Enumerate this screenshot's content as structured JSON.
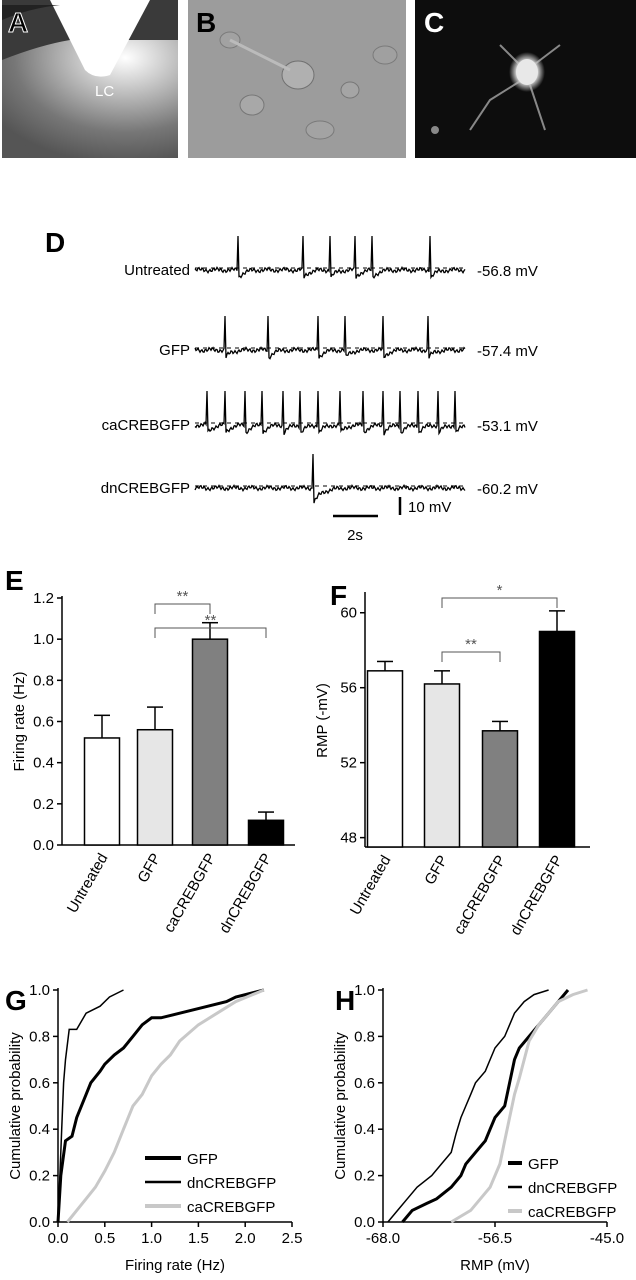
{
  "images": [
    {
      "label": "A",
      "annotation": "LC"
    },
    {
      "label": "B"
    },
    {
      "label": "C"
    }
  ],
  "traces": {
    "label": "D",
    "rows": [
      {
        "name": "Untreated",
        "potential": "-56.8 mV"
      },
      {
        "name": "GFP",
        "potential": "-57.4 mV"
      },
      {
        "name": "caCREBGFP",
        "potential": "-53.1 mV"
      },
      {
        "name": "dnCREBGFP",
        "potential": "-60.2 mV"
      }
    ],
    "scale_y": "10 mV",
    "scale_x": "2s"
  },
  "chart_data": [
    {
      "type": "bar",
      "panel": "E",
      "ylabel": "Firing rate (Hz)",
      "categories": [
        "Untreated",
        "GFP",
        "caCREBGFP",
        "dnCREBGFP"
      ],
      "values": [
        0.52,
        0.56,
        1.0,
        0.12
      ],
      "errors": [
        0.11,
        0.11,
        0.08,
        0.04
      ],
      "colors": [
        "#ffffff",
        "#e6e6e6",
        "#808080",
        "#000000"
      ],
      "ylim": [
        0,
        1.2
      ],
      "yticks": [
        {
          "value": 0,
          "label": "0.0"
        },
        0.2,
        0.4,
        0.6,
        0.8,
        {
          "value": 1,
          "label": "1.0"
        },
        1.2
      ],
      "annotations": [
        "**",
        "**"
      ]
    },
    {
      "type": "bar",
      "panel": "F",
      "ylabel": "RMP (-mV)",
      "categories": [
        "Untreated",
        "GFP",
        "caCREBGFP",
        "dnCREBGFP"
      ],
      "values": [
        56.9,
        56.2,
        53.7,
        59.0
      ],
      "errors": [
        0.5,
        0.7,
        0.5,
        1.1
      ],
      "colors": [
        "#ffffff",
        "#e6e6e6",
        "#808080",
        "#000000"
      ],
      "ylim": [
        47.5,
        61
      ],
      "yticks": [
        48,
        52,
        56,
        60
      ],
      "annotations": [
        "**",
        "*"
      ]
    },
    {
      "type": "line",
      "panel": "G",
      "xlabel": "Firing rate (Hz)",
      "ylabel": "Cumulative probability",
      "xlim": [
        0,
        2.5
      ],
      "xticks": [
        {
          "value": 0,
          "label": "0.0"
        },
        0.5,
        {
          "value": 1,
          "label": "1.0"
        },
        1.5,
        {
          "value": 2,
          "label": "2.0"
        },
        2.5
      ],
      "ylim": [
        0,
        1
      ],
      "yticks": [
        {
          "value": 0,
          "label": "0.0"
        },
        0.2,
        0.4,
        0.6,
        0.8,
        {
          "value": 1,
          "label": "1.0"
        }
      ],
      "legend": "lower right",
      "series": [
        {
          "name": "GFP",
          "color": "#000000",
          "linewidth": 3,
          "x": [
            0,
            0.03,
            0.08,
            0.15,
            0.2,
            0.3,
            0.35,
            0.45,
            0.5,
            0.6,
            0.7,
            0.8,
            0.9,
            1.0,
            1.1,
            1.3,
            1.5,
            1.8,
            1.9,
            2.2
          ],
          "values": [
            0,
            0.2,
            0.35,
            0.37,
            0.45,
            0.55,
            0.6,
            0.65,
            0.68,
            0.72,
            0.75,
            0.8,
            0.85,
            0.88,
            0.88,
            0.9,
            0.92,
            0.95,
            0.97,
            1.0
          ]
        },
        {
          "name": "dnCREBGFP",
          "color": "#000000",
          "linewidth": 1.5,
          "x": [
            0,
            0.02,
            0.04,
            0.06,
            0.08,
            0.12,
            0.2,
            0.3,
            0.45,
            0.55,
            0.7
          ],
          "values": [
            0,
            0.2,
            0.4,
            0.6,
            0.7,
            0.83,
            0.83,
            0.9,
            0.93,
            0.97,
            1.0
          ]
        },
        {
          "name": "caCREBGFP",
          "color": "#c8c8c8",
          "linewidth": 3,
          "x": [
            0.1,
            0.2,
            0.3,
            0.4,
            0.5,
            0.6,
            0.7,
            0.8,
            0.9,
            1.0,
            1.1,
            1.2,
            1.3,
            1.5,
            1.7,
            1.9,
            2.2
          ],
          "values": [
            0,
            0.05,
            0.1,
            0.15,
            0.22,
            0.3,
            0.4,
            0.5,
            0.55,
            0.63,
            0.68,
            0.72,
            0.78,
            0.85,
            0.9,
            0.95,
            1.0
          ]
        }
      ]
    },
    {
      "type": "line",
      "panel": "H",
      "xlabel": "RMP (mV)",
      "ylabel": "Cumulative probability",
      "xlim": [
        -68,
        -45
      ],
      "xticks": [
        {
          "value": -68,
          "label": "-68.0"
        },
        -56.5,
        {
          "value": -45,
          "label": "-45.0"
        }
      ],
      "ylim": [
        0,
        1
      ],
      "yticks": [
        {
          "value": 0,
          "label": "0.0"
        },
        0.2,
        0.4,
        0.6,
        0.8,
        {
          "value": 1,
          "label": "1.0"
        }
      ],
      "legend": "lower right",
      "series": [
        {
          "name": "GFP",
          "color": "#000000",
          "linewidth": 3,
          "x": [
            -66,
            -65,
            -63.5,
            -62.5,
            -61,
            -60,
            -59.5,
            -58.5,
            -57.5,
            -57,
            -56.5,
            -55.5,
            -55,
            -54.5,
            -54,
            -53,
            -52,
            -51,
            -50,
            -49
          ],
          "values": [
            0,
            0.05,
            0.08,
            0.1,
            0.15,
            0.2,
            0.25,
            0.3,
            0.35,
            0.4,
            0.45,
            0.5,
            0.6,
            0.7,
            0.75,
            0.8,
            0.85,
            0.9,
            0.95,
            1.0
          ]
        },
        {
          "name": "dnCREBGFP",
          "color": "#000000",
          "linewidth": 1.5,
          "x": [
            -67.5,
            -66.5,
            -65.5,
            -64.5,
            -63,
            -62,
            -61,
            -60.5,
            -60,
            -59.5,
            -59,
            -58.5,
            -57.5,
            -57,
            -56.5,
            -55.5,
            -55,
            -54.5,
            -53.5,
            -52.5,
            -51
          ],
          "values": [
            0,
            0.05,
            0.1,
            0.15,
            0.2,
            0.25,
            0.3,
            0.38,
            0.45,
            0.5,
            0.55,
            0.6,
            0.65,
            0.7,
            0.75,
            0.8,
            0.85,
            0.9,
            0.95,
            0.98,
            1.0
          ]
        },
        {
          "name": "caCREBGFP",
          "color": "#c8c8c8",
          "linewidth": 3,
          "x": [
            -61,
            -59,
            -58,
            -57,
            -56,
            -55.5,
            -55,
            -54.5,
            -54,
            -53.5,
            -53,
            -52,
            -51,
            -50,
            -48.5,
            -47
          ],
          "values": [
            0,
            0.05,
            0.1,
            0.15,
            0.25,
            0.35,
            0.45,
            0.55,
            0.62,
            0.7,
            0.78,
            0.85,
            0.9,
            0.95,
            0.98,
            1.0
          ]
        }
      ]
    }
  ]
}
